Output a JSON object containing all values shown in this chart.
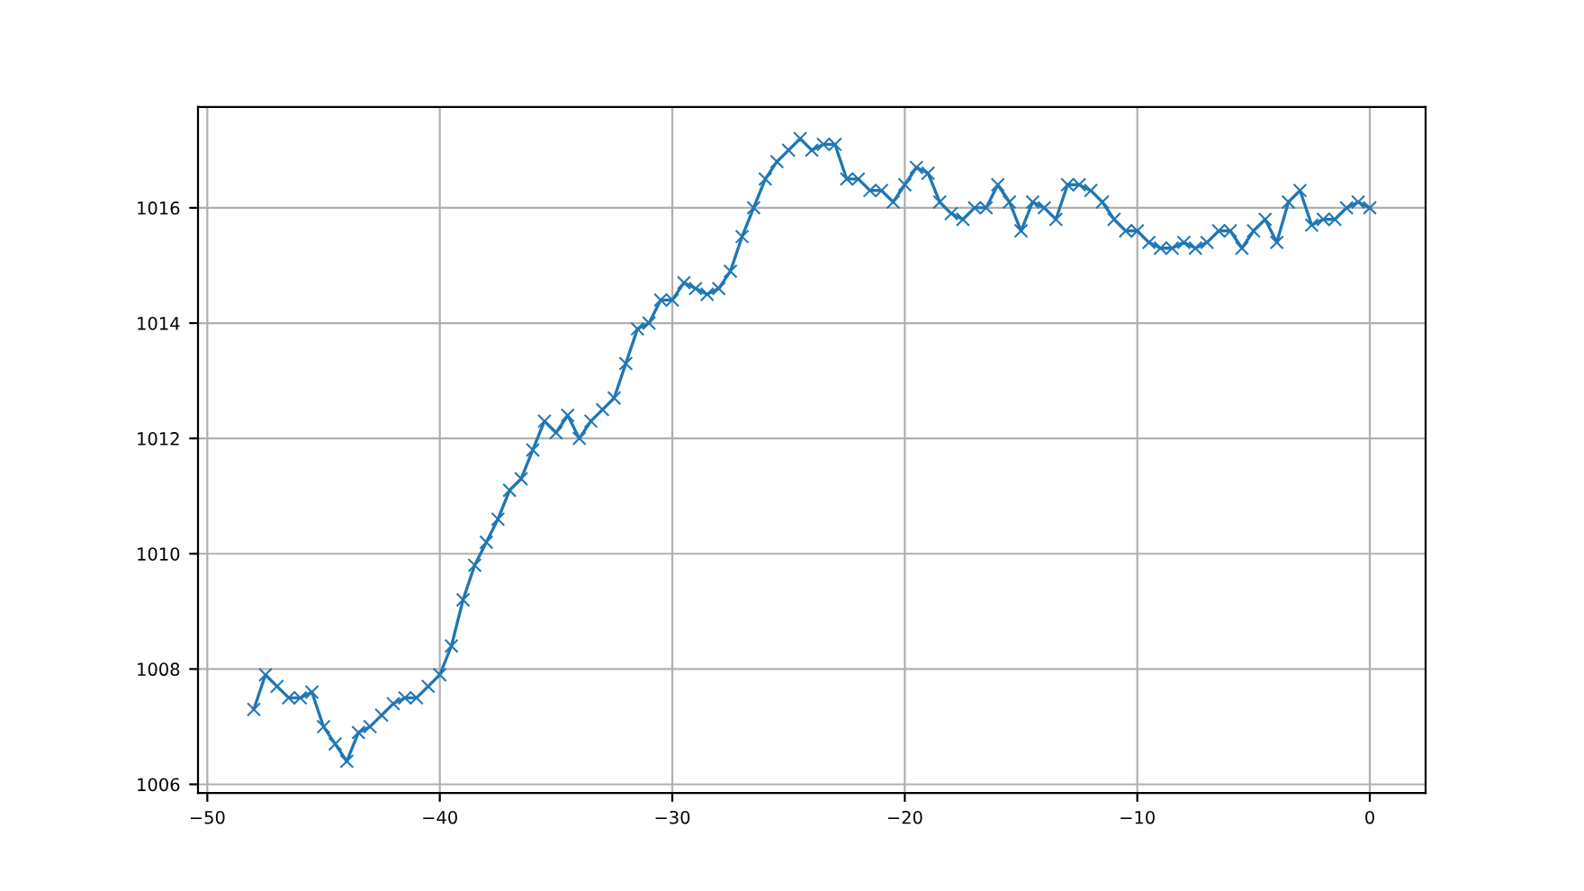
{
  "chart_data": {
    "type": "line",
    "marker": "cross",
    "line_style": "solid",
    "grid": true,
    "x": [
      -48,
      -47.5,
      -47,
      -46.5,
      -46,
      -45.5,
      -45,
      -44.5,
      -44,
      -43.5,
      -43,
      -42.5,
      -42,
      -41.5,
      -41,
      -40.5,
      -40,
      -39.5,
      -39,
      -38.5,
      -38,
      -37.5,
      -37,
      -36.5,
      -36,
      -35.5,
      -35,
      -34.5,
      -34,
      -33.5,
      -33,
      -32.5,
      -32,
      -31.5,
      -31,
      -30.5,
      -30,
      -29.5,
      -29,
      -28.5,
      -28,
      -27.5,
      -27,
      -26.5,
      -26,
      -25.5,
      -25,
      -24.5,
      -24,
      -23.5,
      -23,
      -22.5,
      -22,
      -21.5,
      -21,
      -20.5,
      -20,
      -19.5,
      -19,
      -18.5,
      -18,
      -17.5,
      -17,
      -16.5,
      -16,
      -15.5,
      -15,
      -14.5,
      -14,
      -13.5,
      -13,
      -12.5,
      -12,
      -11.5,
      -11,
      -10.5,
      -10,
      -9.5,
      -9,
      -8.5,
      -8,
      -7.5,
      -7,
      -6.5,
      -6,
      -5.5,
      -5,
      -4.5,
      -4,
      -3.5,
      -3,
      -2.5,
      -2,
      -1.5,
      -1,
      -0.5,
      0
    ],
    "series": [
      {
        "color": "#1f77b4",
        "values": [
          1007.3,
          1007.9,
          1007.7,
          1007.5,
          1007.5,
          1007.6,
          1007.0,
          1006.7,
          1006.4,
          1006.9,
          1007.0,
          1007.2,
          1007.4,
          1007.5,
          1007.5,
          1007.7,
          1007.9,
          1008.4,
          1009.2,
          1009.8,
          1010.2,
          1010.6,
          1011.1,
          1011.3,
          1011.8,
          1012.3,
          1012.1,
          1012.4,
          1012.0,
          1012.3,
          1012.5,
          1012.7,
          1013.3,
          1013.9,
          1014.0,
          1014.4,
          1014.4,
          1014.7,
          1014.6,
          1014.5,
          1014.6,
          1014.9,
          1015.5,
          1016.0,
          1016.5,
          1016.8,
          1017.0,
          1017.2,
          1017.0,
          1017.1,
          1017.1,
          1016.5,
          1016.5,
          1016.3,
          1016.3,
          1016.1,
          1016.4,
          1016.7,
          1016.6,
          1016.1,
          1015.9,
          1015.8,
          1016.0,
          1016.0,
          1016.4,
          1016.1,
          1015.6,
          1016.1,
          1016.0,
          1015.8,
          1016.4,
          1016.4,
          1016.3,
          1016.1,
          1015.8,
          1015.6,
          1015.6,
          1015.4,
          1015.3,
          1015.3,
          1015.4,
          1015.3,
          1015.4,
          1015.6,
          1015.6,
          1015.3,
          1015.6,
          1015.8,
          1015.4,
          1016.1,
          1016.3,
          1015.7,
          1015.8,
          1015.8,
          1016.0,
          1016.1,
          1016.0
        ]
      }
    ],
    "xlim": [
      -50.4,
      2.4
    ],
    "ylim": [
      1005.85,
      1017.75
    ],
    "xticks": [
      {
        "value": -50,
        "label": "−50"
      },
      {
        "value": -40,
        "label": "−40"
      },
      {
        "value": -30,
        "label": "−30"
      },
      {
        "value": -20,
        "label": "−20"
      },
      {
        "value": -10,
        "label": "−10"
      },
      0
    ],
    "yticks": [
      1006,
      1008,
      1010,
      1012,
      1014,
      1016
    ]
  }
}
